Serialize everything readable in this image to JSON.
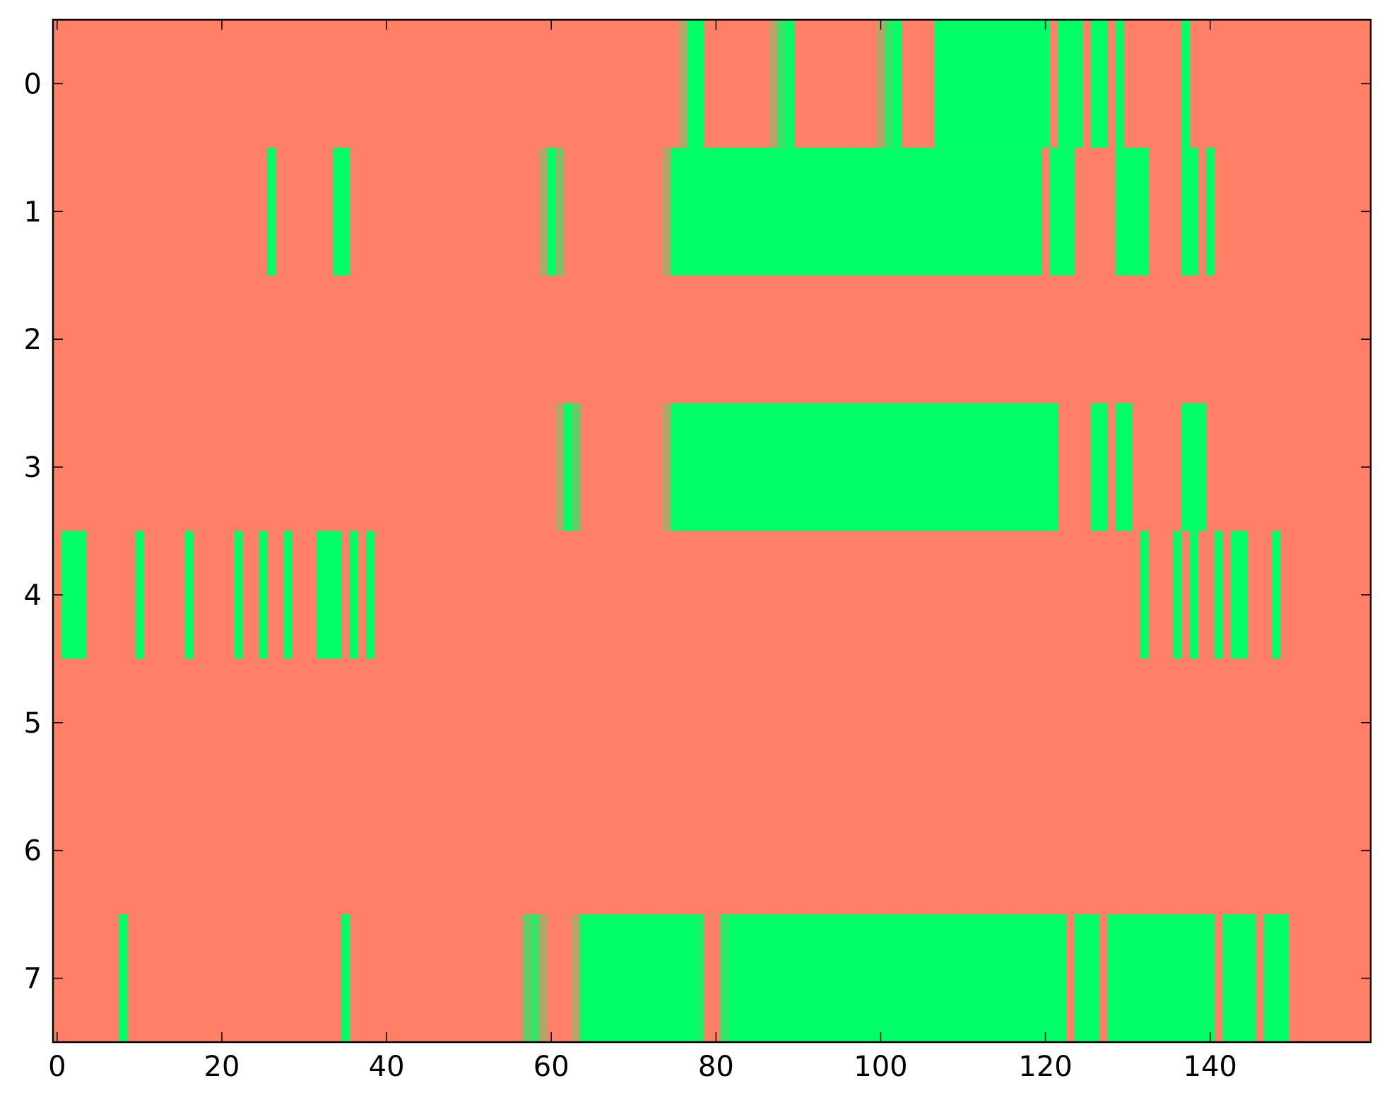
{
  "chart_data": {
    "type": "heatmap",
    "title": "",
    "xlabel": "",
    "ylabel": "",
    "xlim": [
      -0.5,
      159.5
    ],
    "ylim": [
      7.5,
      -0.5
    ],
    "x_ticks": [
      0,
      20,
      40,
      60,
      80,
      100,
      120,
      140
    ],
    "x_tick_labels": [
      "0",
      "20",
      "40",
      "60",
      "80",
      "100",
      "120",
      "140"
    ],
    "y_ticks": [
      0,
      1,
      2,
      3,
      4,
      5,
      6,
      7
    ],
    "y_tick_labels": [
      "0",
      "1",
      "2",
      "3",
      "4",
      "5",
      "6",
      "7"
    ],
    "colormap": "summer",
    "grid": false,
    "background_value": 0,
    "value_range": [
      0,
      1
    ],
    "rows": [
      {
        "row": 0,
        "cells": [
          [
            76,
            0.3
          ],
          [
            77,
            1
          ],
          [
            78,
            1
          ],
          [
            87,
            0.3
          ],
          [
            88,
            0.8
          ],
          [
            89,
            1
          ],
          [
            100,
            0.3
          ],
          [
            101,
            0.8
          ],
          [
            102,
            1
          ],
          [
            107,
            1
          ],
          [
            108,
            1
          ],
          [
            109,
            1
          ],
          [
            110,
            1
          ],
          [
            111,
            1
          ],
          [
            112,
            1
          ],
          [
            113,
            1
          ],
          [
            114,
            1
          ],
          [
            115,
            1
          ],
          [
            116,
            1
          ],
          [
            117,
            1
          ],
          [
            118,
            1
          ],
          [
            119,
            1
          ],
          [
            120,
            1
          ],
          [
            122,
            1
          ],
          [
            123,
            1
          ],
          [
            124,
            1
          ],
          [
            126,
            1
          ],
          [
            127,
            1
          ],
          [
            129,
            1
          ],
          [
            137,
            1
          ]
        ]
      },
      {
        "row": 1,
        "cells": [
          [
            26,
            1
          ],
          [
            34,
            1
          ],
          [
            35,
            1
          ],
          [
            59,
            0.3
          ],
          [
            60,
            1
          ],
          [
            61,
            0.5
          ],
          [
            74,
            0.3
          ],
          [
            75,
            1
          ],
          [
            76,
            1
          ],
          [
            77,
            1
          ],
          [
            78,
            1
          ],
          [
            79,
            1
          ],
          [
            80,
            1
          ],
          [
            81,
            1
          ],
          [
            82,
            1
          ],
          [
            83,
            1
          ],
          [
            84,
            1
          ],
          [
            85,
            1
          ],
          [
            86,
            1
          ],
          [
            87,
            1
          ],
          [
            88,
            1
          ],
          [
            89,
            1
          ],
          [
            90,
            1
          ],
          [
            91,
            1
          ],
          [
            92,
            1
          ],
          [
            93,
            1
          ],
          [
            94,
            1
          ],
          [
            95,
            1
          ],
          [
            96,
            1
          ],
          [
            97,
            1
          ],
          [
            98,
            1
          ],
          [
            99,
            1
          ],
          [
            100,
            1
          ],
          [
            101,
            1
          ],
          [
            102,
            1
          ],
          [
            103,
            1
          ],
          [
            104,
            1
          ],
          [
            105,
            1
          ],
          [
            106,
            1
          ],
          [
            107,
            1
          ],
          [
            108,
            1
          ],
          [
            109,
            1
          ],
          [
            110,
            1
          ],
          [
            111,
            1
          ],
          [
            112,
            1
          ],
          [
            113,
            1
          ],
          [
            114,
            1
          ],
          [
            115,
            1
          ],
          [
            116,
            1
          ],
          [
            117,
            1
          ],
          [
            118,
            1
          ],
          [
            119,
            1
          ],
          [
            121,
            1
          ],
          [
            122,
            1
          ],
          [
            123,
            1
          ],
          [
            129,
            1
          ],
          [
            130,
            1
          ],
          [
            131,
            1
          ],
          [
            132,
            1
          ],
          [
            137,
            1
          ],
          [
            138,
            1
          ],
          [
            140,
            1
          ]
        ]
      },
      {
        "row": 2,
        "cells": []
      },
      {
        "row": 3,
        "cells": [
          [
            61,
            0.3
          ],
          [
            62,
            1
          ],
          [
            63,
            0.6
          ],
          [
            74,
            0.3
          ],
          [
            75,
            1
          ],
          [
            76,
            1
          ],
          [
            77,
            1
          ],
          [
            78,
            1
          ],
          [
            79,
            1
          ],
          [
            80,
            1
          ],
          [
            81,
            1
          ],
          [
            82,
            1
          ],
          [
            83,
            1
          ],
          [
            84,
            1
          ],
          [
            85,
            1
          ],
          [
            86,
            1
          ],
          [
            87,
            1
          ],
          [
            88,
            1
          ],
          [
            89,
            1
          ],
          [
            90,
            1
          ],
          [
            91,
            1
          ],
          [
            92,
            1
          ],
          [
            93,
            1
          ],
          [
            94,
            1
          ],
          [
            95,
            1
          ],
          [
            96,
            1
          ],
          [
            97,
            1
          ],
          [
            98,
            1
          ],
          [
            99,
            1
          ],
          [
            100,
            1
          ],
          [
            101,
            1
          ],
          [
            102,
            1
          ],
          [
            103,
            1
          ],
          [
            104,
            1
          ],
          [
            105,
            1
          ],
          [
            106,
            1
          ],
          [
            107,
            1
          ],
          [
            108,
            1
          ],
          [
            109,
            1
          ],
          [
            110,
            1
          ],
          [
            111,
            1
          ],
          [
            112,
            1
          ],
          [
            113,
            1
          ],
          [
            114,
            1
          ],
          [
            115,
            1
          ],
          [
            116,
            1
          ],
          [
            117,
            1
          ],
          [
            118,
            1
          ],
          [
            119,
            1
          ],
          [
            120,
            1
          ],
          [
            121,
            1
          ],
          [
            126,
            1
          ],
          [
            127,
            1
          ],
          [
            129,
            1
          ],
          [
            130,
            1
          ],
          [
            137,
            1
          ],
          [
            138,
            1
          ],
          [
            139,
            1
          ]
        ]
      },
      {
        "row": 4,
        "cells": [
          [
            1,
            1
          ],
          [
            2,
            1
          ],
          [
            3,
            1
          ],
          [
            10,
            1
          ],
          [
            16,
            1
          ],
          [
            22,
            1
          ],
          [
            25,
            1
          ],
          [
            28,
            1
          ],
          [
            32,
            1
          ],
          [
            33,
            1
          ],
          [
            34,
            1
          ],
          [
            36,
            1
          ],
          [
            38,
            1
          ],
          [
            132,
            1
          ],
          [
            136,
            1
          ],
          [
            138,
            1
          ],
          [
            141,
            1
          ],
          [
            143,
            1
          ],
          [
            144,
            1
          ],
          [
            148,
            1
          ]
        ]
      },
      {
        "row": 5,
        "cells": []
      },
      {
        "row": 6,
        "cells": []
      },
      {
        "row": 7,
        "cells": [
          [
            8,
            1
          ],
          [
            35,
            1
          ],
          [
            57,
            0.6
          ],
          [
            58,
            0.8
          ],
          [
            59,
            0.3
          ],
          [
            63,
            0.3
          ],
          [
            64,
            1
          ],
          [
            65,
            1
          ],
          [
            66,
            1
          ],
          [
            67,
            1
          ],
          [
            68,
            1
          ],
          [
            69,
            1
          ],
          [
            70,
            1
          ],
          [
            71,
            1
          ],
          [
            72,
            1
          ],
          [
            73,
            1
          ],
          [
            74,
            1
          ],
          [
            75,
            1
          ],
          [
            76,
            1
          ],
          [
            77,
            1
          ],
          [
            78,
            0.9
          ],
          [
            81,
            0.8
          ],
          [
            82,
            1
          ],
          [
            83,
            1
          ],
          [
            84,
            1
          ],
          [
            85,
            1
          ],
          [
            86,
            1
          ],
          [
            87,
            1
          ],
          [
            88,
            1
          ],
          [
            89,
            1
          ],
          [
            90,
            1
          ],
          [
            91,
            1
          ],
          [
            92,
            1
          ],
          [
            93,
            1
          ],
          [
            94,
            1
          ],
          [
            95,
            1
          ],
          [
            96,
            1
          ],
          [
            97,
            1
          ],
          [
            98,
            1
          ],
          [
            99,
            1
          ],
          [
            100,
            1
          ],
          [
            101,
            1
          ],
          [
            102,
            1
          ],
          [
            103,
            1
          ],
          [
            104,
            1
          ],
          [
            105,
            1
          ],
          [
            106,
            1
          ],
          [
            107,
            1
          ],
          [
            108,
            1
          ],
          [
            109,
            1
          ],
          [
            110,
            1
          ],
          [
            111,
            1
          ],
          [
            112,
            1
          ],
          [
            113,
            1
          ],
          [
            114,
            1
          ],
          [
            115,
            1
          ],
          [
            116,
            1
          ],
          [
            117,
            1
          ],
          [
            118,
            1
          ],
          [
            119,
            1
          ],
          [
            120,
            1
          ],
          [
            121,
            1
          ],
          [
            122,
            1
          ],
          [
            124,
            1
          ],
          [
            125,
            1
          ],
          [
            126,
            1
          ],
          [
            128,
            1
          ],
          [
            129,
            1
          ],
          [
            130,
            1
          ],
          [
            131,
            1
          ],
          [
            132,
            1
          ],
          [
            133,
            1
          ],
          [
            134,
            1
          ],
          [
            135,
            1
          ],
          [
            136,
            1
          ],
          [
            137,
            1
          ],
          [
            138,
            1
          ],
          [
            139,
            1
          ],
          [
            140,
            1
          ],
          [
            142,
            1
          ],
          [
            143,
            1
          ],
          [
            144,
            1
          ],
          [
            145,
            1
          ],
          [
            147,
            1
          ],
          [
            148,
            1
          ],
          [
            149,
            1
          ]
        ]
      }
    ]
  }
}
